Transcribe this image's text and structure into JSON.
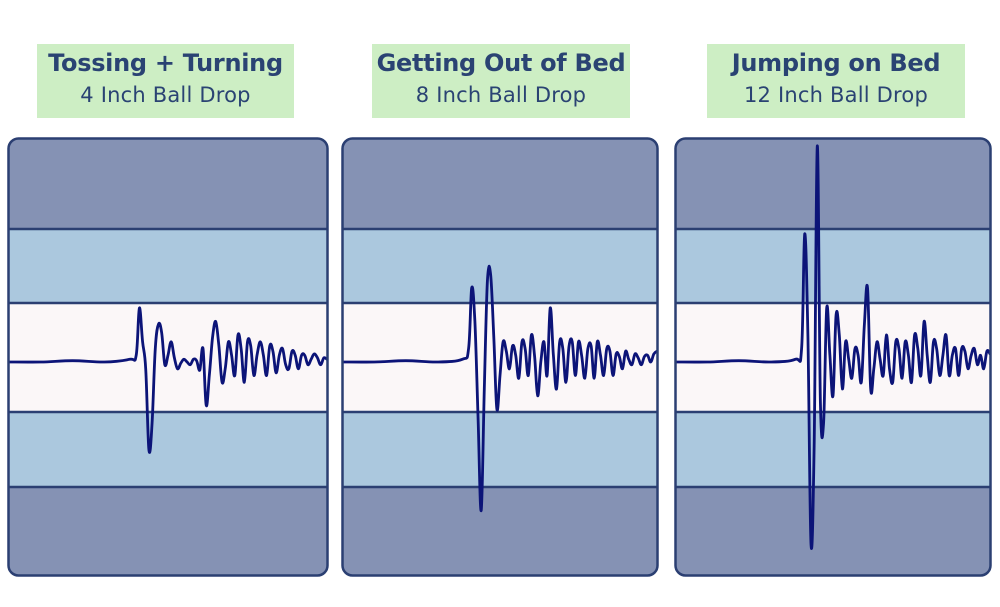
{
  "colors": {
    "outer_band": "#8592b4",
    "middle_band": "#abc8de",
    "center_band": "#fbf7f8",
    "band_border": "#2b3f72",
    "waveform": "#0c1478",
    "label_bg": "#cdeec4",
    "label_text": "#2a4373"
  },
  "chart_data": [
    {
      "type": "line",
      "title": "Tossing + Turning",
      "subtitle": "4 Inch Ball Drop",
      "ylim": [
        -1,
        1
      ],
      "xlim": [
        0,
        100
      ],
      "series": [
        {
          "x": [
            0,
            10,
            20,
            30,
            38,
            40,
            41,
            42,
            43,
            44,
            45,
            46,
            47,
            48,
            49,
            50,
            51,
            52,
            53,
            54,
            55,
            56,
            57,
            58,
            59,
            60,
            61,
            62,
            63,
            64,
            65,
            66,
            67,
            68,
            69,
            70,
            71,
            72,
            73,
            74,
            75,
            76,
            77,
            78,
            79,
            80,
            81,
            82,
            83,
            84,
            85,
            86,
            87,
            88,
            89,
            90,
            91,
            92,
            93,
            94,
            95,
            96,
            97,
            98,
            99,
            100
          ],
          "values": [
            0,
            0,
            0.01,
            0,
            0.02,
            0.05,
            0.4,
            0.15,
            -0.05,
            -0.65,
            -0.45,
            0.1,
            0.28,
            0.22,
            -0.02,
            0.05,
            0.15,
            0.03,
            -0.05,
            -0.01,
            0.02,
            0,
            -0.02,
            0.02,
            0.01,
            -0.06,
            0.1,
            -0.32,
            -0.1,
            0.18,
            0.3,
            0.12,
            -0.15,
            -0.05,
            0.15,
            0.05,
            -0.1,
            0.2,
            0.1,
            -0.15,
            0.15,
            0.12,
            -0.1,
            0.05,
            0.15,
            0.05,
            -0.1,
            0.12,
            0.08,
            -0.08,
            0.05,
            0.1,
            -0.02,
            -0.05,
            0.08,
            0.05,
            -0.05,
            0.05,
            0.05,
            -0.02,
            0.02,
            0.06,
            0.03,
            -0.02,
            0.03,
            0.02
          ]
        }
      ]
    },
    {
      "type": "line",
      "title": "Getting Out of Bed",
      "subtitle": "8 Inch Ball Drop",
      "ylim": [
        -1,
        1
      ],
      "xlim": [
        0,
        100
      ],
      "series": [
        {
          "x": [
            0,
            10,
            20,
            30,
            38,
            40,
            41,
            42,
            43,
            44,
            45,
            46,
            47,
            48,
            49,
            50,
            51,
            52,
            53,
            54,
            55,
            56,
            57,
            58,
            59,
            60,
            61,
            62,
            63,
            64,
            65,
            66,
            67,
            68,
            69,
            70,
            71,
            72,
            73,
            74,
            75,
            76,
            77,
            78,
            79,
            80,
            81,
            82,
            83,
            84,
            85,
            86,
            87,
            88,
            89,
            90,
            91,
            92,
            93,
            94,
            95,
            96,
            97,
            98,
            99,
            100
          ],
          "values": [
            0,
            0,
            0.01,
            0,
            0.02,
            0.1,
            0.55,
            0.3,
            -0.4,
            -1.1,
            -0.2,
            0.6,
            0.65,
            0.2,
            -0.35,
            -0.1,
            0.15,
            0.08,
            -0.05,
            0.12,
            0.05,
            -0.12,
            0.15,
            0.1,
            -0.1,
            0.2,
            0.05,
            -0.25,
            0,
            0.15,
            -0.1,
            0.4,
            0.05,
            -0.2,
            0.15,
            0.1,
            -0.15,
            0.12,
            0.15,
            -0.1,
            0.15,
            0.05,
            -0.12,
            0.1,
            0.12,
            -0.12,
            0.15,
            0.05,
            -0.1,
            0.1,
            0.08,
            -0.1,
            0.06,
            0.04,
            -0.05,
            0.08,
            0.02,
            -0.02,
            0.06,
            0.03,
            -0.02,
            0.04,
            0.05,
            0,
            0.06,
            0.08
          ]
        }
      ]
    },
    {
      "type": "line",
      "title": "Jumping on Bed",
      "subtitle": "12 Inch Ball Drop",
      "ylim": [
        -1,
        1
      ],
      "xlim": [
        0,
        100
      ],
      "series": [
        {
          "x": [
            0,
            10,
            20,
            30,
            38,
            40,
            41,
            42,
            43,
            44,
            45,
            46,
            47,
            48,
            49,
            50,
            51,
            52,
            53,
            54,
            55,
            56,
            57,
            58,
            59,
            60,
            61,
            62,
            63,
            64,
            65,
            66,
            67,
            68,
            69,
            70,
            71,
            72,
            73,
            74,
            75,
            76,
            77,
            78,
            79,
            80,
            81,
            82,
            83,
            84,
            85,
            86,
            87,
            88,
            89,
            90,
            91,
            92,
            93,
            94,
            95,
            96,
            97,
            98,
            99,
            100
          ],
          "values": [
            0,
            0,
            0.01,
            0,
            0.02,
            0.1,
            0.95,
            0.2,
            -1.35,
            -0.6,
            1.6,
            -0.3,
            -0.45,
            0.4,
            0.05,
            -0.25,
            0.35,
            0.2,
            -0.2,
            0.15,
            0.02,
            -0.12,
            0.1,
            0.05,
            -0.15,
            0.28,
            0.55,
            -0.2,
            -0.05,
            0.15,
            0.02,
            -0.1,
            0.2,
            -0.05,
            -0.15,
            0.15,
            0.1,
            -0.12,
            0.15,
            0.05,
            -0.15,
            0.2,
            0.1,
            -0.1,
            0.3,
            0.05,
            -0.15,
            0.15,
            0.1,
            -0.1,
            0.05,
            0.2,
            -0.1,
            0.05,
            0.1,
            -0.1,
            0.1,
            0.08,
            -0.05,
            0.05,
            0.1,
            -0.02,
            0.05,
            -0.05,
            0.08,
            0.06
          ]
        }
      ]
    }
  ]
}
